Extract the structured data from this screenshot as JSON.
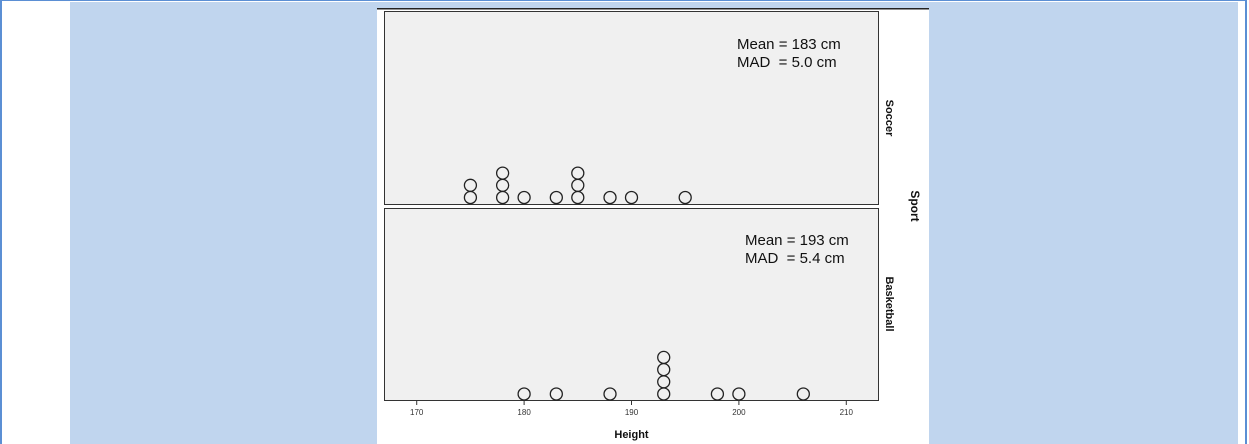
{
  "colors": {
    "band": "#c0d5ee",
    "frame": "#5b8fd4",
    "panel_bg": "#f0f0f0",
    "marker_stroke": "#222222"
  },
  "chart_data": {
    "type": "scatter",
    "subtype": "dot-plot",
    "xlabel": "Height",
    "facet_label": "Sport",
    "xlim": [
      167,
      213
    ],
    "xticks": [
      170,
      180,
      190,
      200,
      210
    ],
    "grid": false,
    "panels": [
      {
        "name": "Soccer",
        "stats": {
          "mean": "Mean = 183 cm",
          "mad": "MAD  = 5.0 cm"
        },
        "points": [
          {
            "x": 175,
            "count": 2
          },
          {
            "x": 178,
            "count": 3
          },
          {
            "x": 180,
            "count": 1
          },
          {
            "x": 183,
            "count": 1
          },
          {
            "x": 185,
            "count": 3
          },
          {
            "x": 188,
            "count": 1
          },
          {
            "x": 190,
            "count": 1
          },
          {
            "x": 195,
            "count": 1
          }
        ]
      },
      {
        "name": "Basketball",
        "stats": {
          "mean": "Mean = 193 cm",
          "mad": "MAD  = 5.4 cm"
        },
        "points": [
          {
            "x": 180,
            "count": 1
          },
          {
            "x": 183,
            "count": 1
          },
          {
            "x": 188,
            "count": 1
          },
          {
            "x": 193,
            "count": 4
          },
          {
            "x": 198,
            "count": 1
          },
          {
            "x": 200,
            "count": 1
          },
          {
            "x": 206,
            "count": 1
          }
        ]
      }
    ]
  }
}
